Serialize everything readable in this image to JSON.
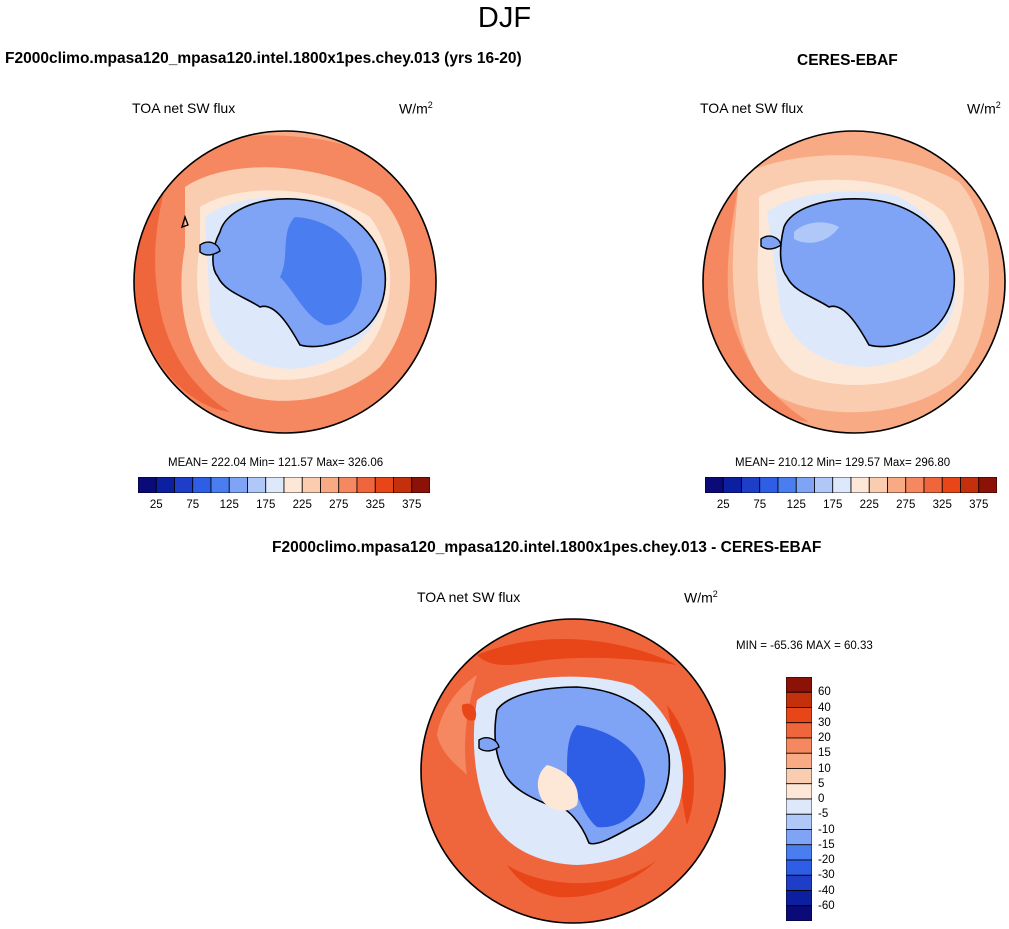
{
  "figure": {
    "season": "DJF"
  },
  "panels": [
    {
      "title": "F2000climo.mpasa120_mpasa120.intel.1800x1pes.chey.013 (yrs 16-20)",
      "variable": "TOA net SW flux",
      "units_base": "W/m",
      "units_exp": "2",
      "stats": "MEAN= 222.04  Min= 121.57  Max= 326.06"
    },
    {
      "title": "CERES-EBAF",
      "variable": "TOA net SW flux",
      "units_base": "W/m",
      "units_exp": "2",
      "stats": "MEAN= 210.12  Min= 129.57  Max= 296.80"
    },
    {
      "title": "F2000climo.mpasa120_mpasa120.intel.1800x1pes.chey.013 - CERES-EBAF",
      "variable": "TOA net SW flux",
      "units_base": "W/m",
      "units_exp": "2",
      "stats": "MIN = -65.36 MAX =  60.33"
    }
  ],
  "chart_data": [
    {
      "type": "colorbar",
      "orientation": "horizontal",
      "colors": [
        "#0a0a78",
        "#0c1fa0",
        "#1e3ec8",
        "#2e5ee6",
        "#4a7ef0",
        "#7fa4f5",
        "#afc8f8",
        "#dde8fb",
        "#fde8d8",
        "#fbcdb0",
        "#f8aa84",
        "#f58860",
        "#f0663c",
        "#e84618",
        "#c42f0c",
        "#8c1208"
      ],
      "tick_labels": [
        "25",
        "75",
        "125",
        "175",
        "225",
        "275",
        "325",
        "375"
      ]
    },
    {
      "type": "colorbar",
      "orientation": "horizontal",
      "colors": [
        "#0a0a78",
        "#0c1fa0",
        "#1e3ec8",
        "#2e5ee6",
        "#4a7ef0",
        "#7fa4f5",
        "#afc8f8",
        "#dde8fb",
        "#fde8d8",
        "#fbcdb0",
        "#f8aa84",
        "#f58860",
        "#f0663c",
        "#e84618",
        "#c42f0c",
        "#8c1208"
      ],
      "tick_labels": [
        "25",
        "75",
        "125",
        "175",
        "225",
        "275",
        "325",
        "375"
      ]
    },
    {
      "type": "colorbar",
      "orientation": "vertical",
      "colors_top_to_bottom": [
        "#8c1208",
        "#c42f0c",
        "#e84618",
        "#f0663c",
        "#f58860",
        "#f8aa84",
        "#fbcdb0",
        "#fde8d8",
        "#dde8fb",
        "#afc8f8",
        "#7fa4f5",
        "#4a7ef0",
        "#2e5ee6",
        "#1e3ec8",
        "#0c1fa0",
        "#0a0a78"
      ],
      "tick_labels": [
        "60",
        "40",
        "30",
        "20",
        "15",
        "10",
        "5",
        "0",
        "-5",
        "-10",
        "-15",
        "-20",
        "-30",
        "-40",
        "-60"
      ]
    }
  ]
}
